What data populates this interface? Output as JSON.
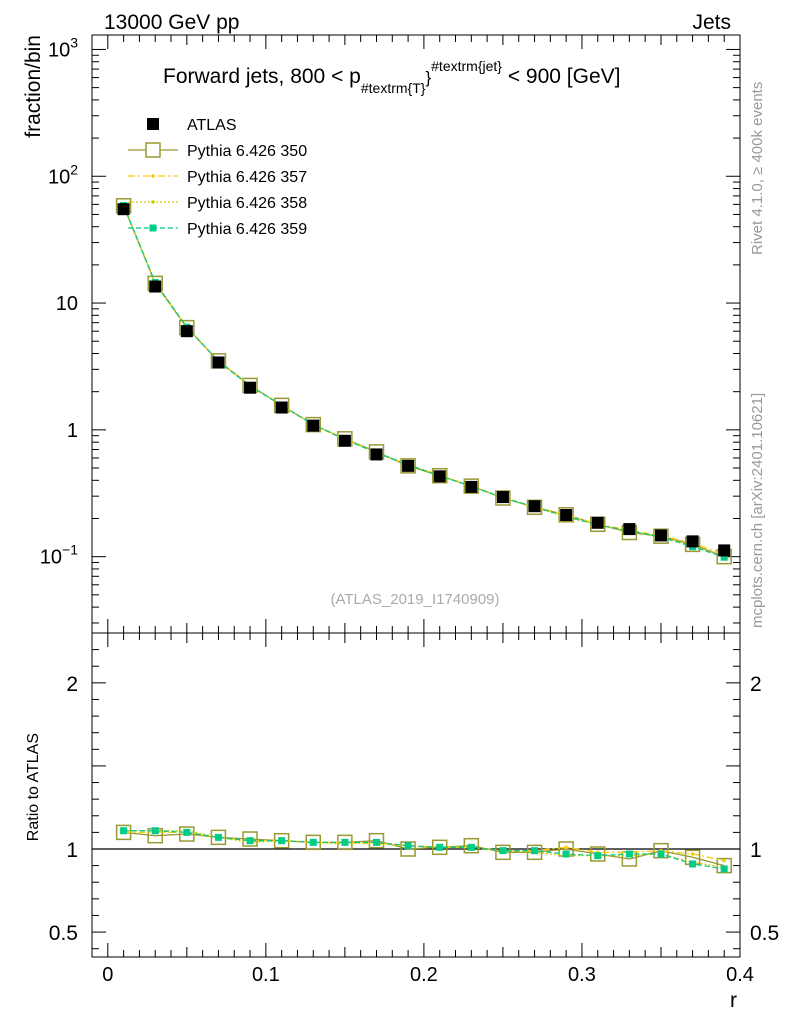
{
  "header": {
    "left": "13000 GeV pp",
    "right": "Jets"
  },
  "side_labels": {
    "rivet": "Rivet 4.1.0, ≥ 400k events",
    "mcplots": "mcplots.cern.ch [arXiv:2401.10621]"
  },
  "chart_data": [
    {
      "type": "scatter",
      "title": "Forward jets, 800 < p",
      "title_sub": "#textrm{T}",
      "title_sup": "#textrm{jet}",
      "title_end": "< 900 [GeV]",
      "ylabel": "fraction/bin",
      "yscale": "log",
      "ylim": [
        0.025,
        1300
      ],
      "xlim": [
        -0.01,
        0.4
      ],
      "y_ticks": [
        {
          "value": 1000,
          "base": "10",
          "exp": "3"
        },
        {
          "value": 100,
          "base": "10",
          "exp": "2"
        },
        {
          "value": 10,
          "base": "10",
          "exp": ""
        },
        {
          "value": 1,
          "base": "1",
          "exp": ""
        },
        {
          "value": 0.1,
          "base": "10",
          "exp": "−1"
        }
      ],
      "x": [
        0.01,
        0.03,
        0.05,
        0.07,
        0.09,
        0.11,
        0.13,
        0.15,
        0.17,
        0.19,
        0.21,
        0.23,
        0.25,
        0.27,
        0.29,
        0.31,
        0.33,
        0.35,
        0.37,
        0.39
      ],
      "watermark": "(ATLAS_2019_I1740909)",
      "series": [
        {
          "name": "ATLAS",
          "color": "#000000",
          "style": "data",
          "values": [
            55,
            13.5,
            6.0,
            3.4,
            2.15,
            1.5,
            1.08,
            0.82,
            0.64,
            0.52,
            0.43,
            0.355,
            0.295,
            0.25,
            0.213,
            0.185,
            0.165,
            0.147,
            0.132,
            0.112
          ]
        },
        {
          "name": "Pythia 6.426 350",
          "color": "#999933",
          "style": "open-square",
          "values": [
            58.5,
            14.3,
            6.4,
            3.5,
            2.24,
            1.56,
            1.1,
            0.85,
            0.67,
            0.52,
            0.435,
            0.36,
            0.29,
            0.245,
            0.214,
            0.18,
            0.155,
            0.145,
            0.125,
            0.1
          ]
        },
        {
          "name": "Pythia 6.426 357",
          "color": "#ffcc00",
          "style": "dash-dot",
          "values": [
            58.0,
            14.4,
            6.4,
            3.49,
            2.24,
            1.55,
            1.1,
            0.85,
            0.66,
            0.53,
            0.44,
            0.36,
            0.292,
            0.247,
            0.214,
            0.18,
            0.162,
            0.146,
            0.128,
            0.104
          ]
        },
        {
          "name": "Pythia 6.426 358",
          "color": "#cccc00",
          "style": "dotted",
          "values": [
            58.6,
            14.6,
            6.5,
            3.48,
            2.22,
            1.56,
            1.1,
            0.84,
            0.665,
            0.532,
            0.438,
            0.36,
            0.293,
            0.245,
            0.205,
            0.178,
            0.158,
            0.142,
            0.122,
            0.1
          ]
        },
        {
          "name": "Pythia 6.426 359",
          "color": "#00cc88",
          "style": "dashed",
          "values": [
            58.8,
            14.5,
            6.45,
            3.47,
            2.22,
            1.56,
            1.1,
            0.84,
            0.66,
            0.53,
            0.435,
            0.358,
            0.292,
            0.247,
            0.208,
            0.178,
            0.16,
            0.143,
            0.12,
            0.099
          ]
        }
      ]
    },
    {
      "type": "scatter",
      "ylabel": "Ratio to ATLAS",
      "xlabel": "r",
      "yscale": "linear",
      "ylim": [
        0.35,
        2.3
      ],
      "xlim": [
        -0.01,
        0.4
      ],
      "y_ticks": [
        2,
        1,
        0.5
      ],
      "y_tick_labels": [
        "2",
        "1",
        "0.5"
      ],
      "x_ticks": [
        0,
        0.1,
        0.2,
        0.3,
        0.4
      ],
      "x_tick_labels": [
        "0",
        "0.1",
        "0.2",
        "0.3",
        "0.4"
      ],
      "reference_line": 1,
      "x": [
        0.01,
        0.03,
        0.05,
        0.07,
        0.09,
        0.11,
        0.13,
        0.15,
        0.17,
        0.19,
        0.21,
        0.23,
        0.25,
        0.27,
        0.29,
        0.31,
        0.33,
        0.35,
        0.37,
        0.39
      ],
      "series": [
        {
          "name": "Pythia 6.426 350",
          "color": "#999933",
          "style": "open-square",
          "values": [
            1.1,
            1.08,
            1.09,
            1.07,
            1.06,
            1.05,
            1.04,
            1.04,
            1.05,
            1.0,
            1.01,
            1.02,
            0.98,
            0.98,
            1.0,
            0.97,
            0.94,
            0.99,
            0.95,
            0.9
          ]
        },
        {
          "name": "Pythia 6.426 357",
          "color": "#ffcc00",
          "style": "dash-dot",
          "values": [
            1.1,
            1.1,
            1.1,
            1.07,
            1.05,
            1.05,
            1.04,
            1.04,
            1.03,
            1.02,
            1.01,
            1.01,
            0.99,
            0.99,
            1.01,
            0.98,
            0.98,
            0.99,
            0.97,
            0.93
          ]
        },
        {
          "name": "Pythia 6.426 358",
          "color": "#cccc00",
          "style": "dotted",
          "values": [
            1.11,
            1.11,
            1.11,
            1.07,
            1.04,
            1.05,
            1.04,
            1.03,
            1.04,
            1.02,
            1.01,
            1.01,
            0.99,
            0.98,
            0.96,
            0.96,
            0.96,
            0.97,
            0.92,
            0.89
          ]
        },
        {
          "name": "Pythia 6.426 359",
          "color": "#00cc88",
          "style": "dashed",
          "values": [
            1.11,
            1.11,
            1.1,
            1.07,
            1.05,
            1.05,
            1.04,
            1.04,
            1.04,
            1.02,
            1.01,
            1.01,
            0.99,
            0.99,
            0.97,
            0.96,
            0.97,
            0.97,
            0.91,
            0.88
          ]
        }
      ]
    }
  ]
}
